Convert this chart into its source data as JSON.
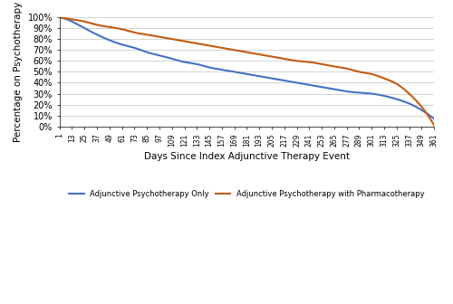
{
  "title": "",
  "xlabel": "Days Since Index Adjunctive Therapy Event",
  "ylabel": "Percentage on Psychotherapy",
  "xlim": [
    1,
    361
  ],
  "ylim": [
    0,
    1.0
  ],
  "xticks": [
    1,
    13,
    25,
    37,
    49,
    61,
    73,
    85,
    97,
    109,
    121,
    133,
    145,
    157,
    169,
    181,
    193,
    205,
    217,
    229,
    241,
    253,
    265,
    277,
    289,
    301,
    313,
    325,
    337,
    349,
    361
  ],
  "yticks": [
    0,
    0.1,
    0.2,
    0.3,
    0.4,
    0.5,
    0.6,
    0.7,
    0.8,
    0.9,
    1.0
  ],
  "line1_color": "#4472C4",
  "line2_color": "#C55A11",
  "legend_labels": [
    "Adjunctive Psychotherapy Only",
    "Adjunctive Psychotherapy with Pharmacotherapy"
  ],
  "background_color": "#FFFFFF",
  "grid_color": "#D3D3D3",
  "line1_x": [
    1,
    13,
    25,
    37,
    49,
    61,
    73,
    85,
    97,
    109,
    121,
    133,
    145,
    157,
    169,
    181,
    193,
    205,
    217,
    229,
    241,
    253,
    265,
    277,
    289,
    301,
    313,
    325,
    337,
    349,
    361
  ],
  "line1_y": [
    1.0,
    0.96,
    0.9,
    0.84,
    0.79,
    0.75,
    0.72,
    0.68,
    0.65,
    0.62,
    0.59,
    0.57,
    0.54,
    0.52,
    0.5,
    0.48,
    0.46,
    0.44,
    0.42,
    0.4,
    0.38,
    0.36,
    0.34,
    0.32,
    0.31,
    0.3,
    0.28,
    0.25,
    0.21,
    0.15,
    0.07
  ],
  "line2_x": [
    1,
    13,
    25,
    37,
    49,
    61,
    73,
    85,
    97,
    109,
    121,
    133,
    145,
    157,
    169,
    181,
    193,
    205,
    217,
    229,
    241,
    253,
    265,
    277,
    289,
    301,
    313,
    325,
    337,
    349,
    361
  ],
  "line2_y": [
    1.0,
    0.98,
    0.96,
    0.93,
    0.91,
    0.89,
    0.86,
    0.84,
    0.82,
    0.8,
    0.78,
    0.76,
    0.74,
    0.72,
    0.7,
    0.68,
    0.66,
    0.64,
    0.62,
    0.6,
    0.59,
    0.57,
    0.55,
    0.53,
    0.5,
    0.48,
    0.44,
    0.39,
    0.3,
    0.18,
    0.01
  ]
}
